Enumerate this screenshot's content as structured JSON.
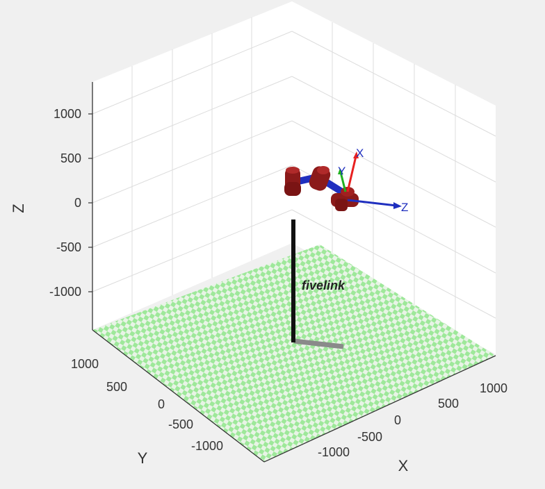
{
  "axes": {
    "xlabel": "X",
    "ylabel": "Y",
    "zlabel": "Z",
    "z_ticks": [
      "1000",
      "500",
      "0",
      "-500",
      "-1000"
    ],
    "y_ticks": [
      "1000",
      "500",
      "0",
      "-500",
      "-1000"
    ],
    "x_ticks": [
      "-1000",
      "-500",
      "0",
      "500",
      "1000"
    ]
  },
  "robot": {
    "name": "fivelink",
    "frame_labels": {
      "x": "X",
      "y": "Y",
      "z": "Z"
    }
  },
  "colors": {
    "background": "#f0f0f0",
    "floor_green": "#9ee89a",
    "floor_light": "#e8f4e6",
    "link_red": "#8b1a1a",
    "link_blue": "#1f2fbf",
    "axis_x": "#e82020",
    "axis_y": "#20b020",
    "axis_z": "#1f2fbf",
    "base_pole": "#111111",
    "base_shadow": "#8a8a8a"
  },
  "icons": {
    "floor": "checkerboard-floor",
    "robot": "robot-arm-model"
  }
}
